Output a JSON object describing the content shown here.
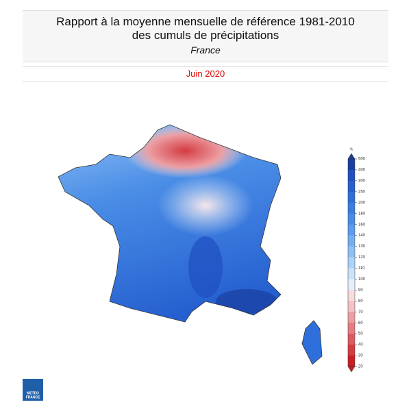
{
  "header": {
    "title": "Rapport à la moyenne mensuelle de référence 1981-2010 des cumuls de précipitations",
    "subtitle": "France"
  },
  "period": "Juin 2020",
  "legend": {
    "unit": "%",
    "ticks": [
      500,
      400,
      300,
      250,
      200,
      180,
      160,
      140,
      130,
      120,
      110,
      100,
      90,
      80,
      70,
      60,
      50,
      40,
      30,
      20
    ],
    "colors": [
      "#1a3f9e",
      "#1f4fc0",
      "#2660d0",
      "#2e6fdb",
      "#3a7fe0",
      "#4a8de6",
      "#5c9cec",
      "#74aef0",
      "#8fc0f4",
      "#acd2f7",
      "#cbe2f9",
      "#e6eefa",
      "#f6dcdc",
      "#f2c2c4",
      "#ec9fa3",
      "#e57d82",
      "#dd5a61",
      "#d53b43",
      "#c81e25"
    ]
  },
  "logo": {
    "lines": [
      "METEO",
      "FRANCE"
    ]
  }
}
